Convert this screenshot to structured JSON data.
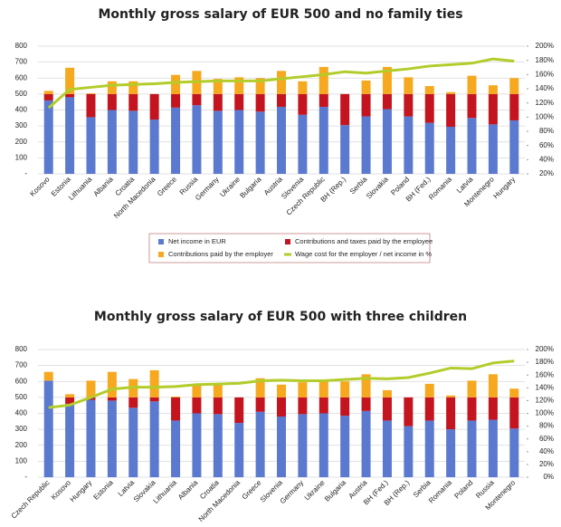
{
  "chart_data": [
    {
      "type": "bar",
      "title": "Monthly gross salary of EUR 500 and no family ties",
      "categories": [
        "Kosovo",
        "Estonia",
        "Lithuania",
        "Albania",
        "Croatia",
        "North Macedonia",
        "Greece",
        "Russia",
        "Germany",
        "Ukraine",
        "Bulgaria",
        "Austria",
        "Slovenia",
        "Czech Republic",
        "BH (Rep.)",
        "Serbia",
        "Slovakia",
        "Poland",
        "BH (Fed.)",
        "Romania",
        "Latvia",
        "Montenegro",
        "Hungary"
      ],
      "series": [
        {
          "name": "Net income in EUR",
          "color": "#5b79cf",
          "values": [
            460,
            480,
            355,
            400,
            395,
            340,
            415,
            430,
            395,
            400,
            390,
            420,
            370,
            420,
            305,
            360,
            405,
            360,
            320,
            295,
            350,
            310,
            335
          ]
        },
        {
          "name": "Contributions and taxes paid by the employee",
          "color": "#c3141f",
          "values": [
            40,
            20,
            145,
            100,
            105,
            160,
            85,
            70,
            105,
            100,
            110,
            80,
            130,
            80,
            195,
            140,
            95,
            140,
            180,
            205,
            150,
            190,
            165
          ]
        },
        {
          "name": "Contributions paid by the employer",
          "color": "#f6a81f",
          "values": [
            20,
            165,
            5,
            80,
            80,
            0,
            120,
            145,
            95,
            105,
            100,
            145,
            80,
            170,
            0,
            85,
            170,
            105,
            50,
            12,
            115,
            55,
            100
          ]
        },
        {
          "name": "Wage cost for the employer / net income in %",
          "color": "#b3cc2a",
          "type": "line",
          "axis": "y2",
          "values": [
            113,
            139,
            142,
            145,
            146,
            147,
            149,
            150,
            151,
            151,
            151,
            154,
            157,
            160,
            164,
            162,
            165,
            168,
            172,
            174,
            176,
            182,
            179
          ]
        }
      ],
      "ylim": [
        0,
        800
      ],
      "yticks": [
        {
          "value": 0,
          "label": "-"
        },
        100,
        200,
        300,
        400,
        500,
        600,
        700,
        800
      ],
      "y2lim": [
        20,
        200
      ],
      "y2ticks": [
        {
          "value": 20,
          "label": "20%"
        },
        {
          "value": 40,
          "label": "40%"
        },
        {
          "value": 60,
          "label": "60%"
        },
        {
          "value": 80,
          "label": "80%"
        },
        {
          "value": 100,
          "label": "100%"
        },
        {
          "value": 120,
          "label": "120%"
        },
        {
          "value": 140,
          "label": "140%"
        },
        {
          "value": 160,
          "label": "160%"
        },
        {
          "value": 180,
          "label": "180%"
        },
        {
          "value": 200,
          "label": "200%"
        }
      ],
      "grid": true,
      "legend": "bottom"
    },
    {
      "type": "bar",
      "title": "Monthly gross salary of EUR 500 with three children",
      "categories": [
        "Czech Republic",
        "Kosovo",
        "Hungary",
        "Estonia",
        "Latvia",
        "Slovakia",
        "Lithuania",
        "Albania",
        "Croatia",
        "North Macedonia",
        "Greece",
        "Slovenia",
        "Germany",
        "Ukraine",
        "Bulgaria",
        "Austria",
        "BH (Fed.)",
        "BH (Rep.)",
        "Serbia",
        "Romania",
        "Poland",
        "Russia",
        "Montenegro"
      ],
      "series": [
        {
          "color": "#5b79cf",
          "values": [
            605,
            460,
            485,
            480,
            435,
            475,
            355,
            400,
            395,
            340,
            410,
            380,
            395,
            400,
            385,
            415,
            355,
            320,
            355,
            300,
            355,
            360,
            305
          ]
        },
        {
          "color": "#c3141f",
          "values": [
            0,
            40,
            15,
            20,
            65,
            25,
            145,
            100,
            105,
            160,
            90,
            120,
            105,
            100,
            115,
            85,
            145,
            180,
            145,
            200,
            145,
            140,
            195
          ]
        },
        {
          "color": "#f6a81f",
          "values": [
            55,
            20,
            105,
            160,
            115,
            170,
            5,
            80,
            80,
            0,
            120,
            80,
            95,
            105,
            100,
            145,
            45,
            0,
            85,
            12,
            105,
            145,
            55
          ]
        },
        {
          "color": "#b3cc2a",
          "type": "line",
          "axis": "y2",
          "values": [
            109,
            113,
            125,
            138,
            141,
            141,
            142,
            145,
            146,
            147,
            151,
            152,
            151,
            151,
            153,
            155,
            154,
            156,
            163,
            171,
            170,
            179,
            182
          ]
        }
      ],
      "ylim": [
        0,
        800
      ],
      "yticks": [
        {
          "value": 0,
          "label": "-"
        },
        100,
        200,
        300,
        400,
        500,
        600,
        700,
        800
      ],
      "y2lim": [
        0,
        200
      ],
      "y2ticks": [
        {
          "value": 0,
          "label": "0%"
        },
        {
          "value": 20,
          "label": "20%"
        },
        {
          "value": 40,
          "label": "40%"
        },
        {
          "value": 60,
          "label": "60%"
        },
        {
          "value": 80,
          "label": "80%"
        },
        {
          "value": 100,
          "label": "100%"
        },
        {
          "value": 120,
          "label": "120%"
        },
        {
          "value": 140,
          "label": "140%"
        },
        {
          "value": 160,
          "label": "160%"
        },
        {
          "value": 180,
          "label": "180%"
        },
        {
          "value": 200,
          "label": "200%"
        }
      ],
      "grid": true
    }
  ]
}
